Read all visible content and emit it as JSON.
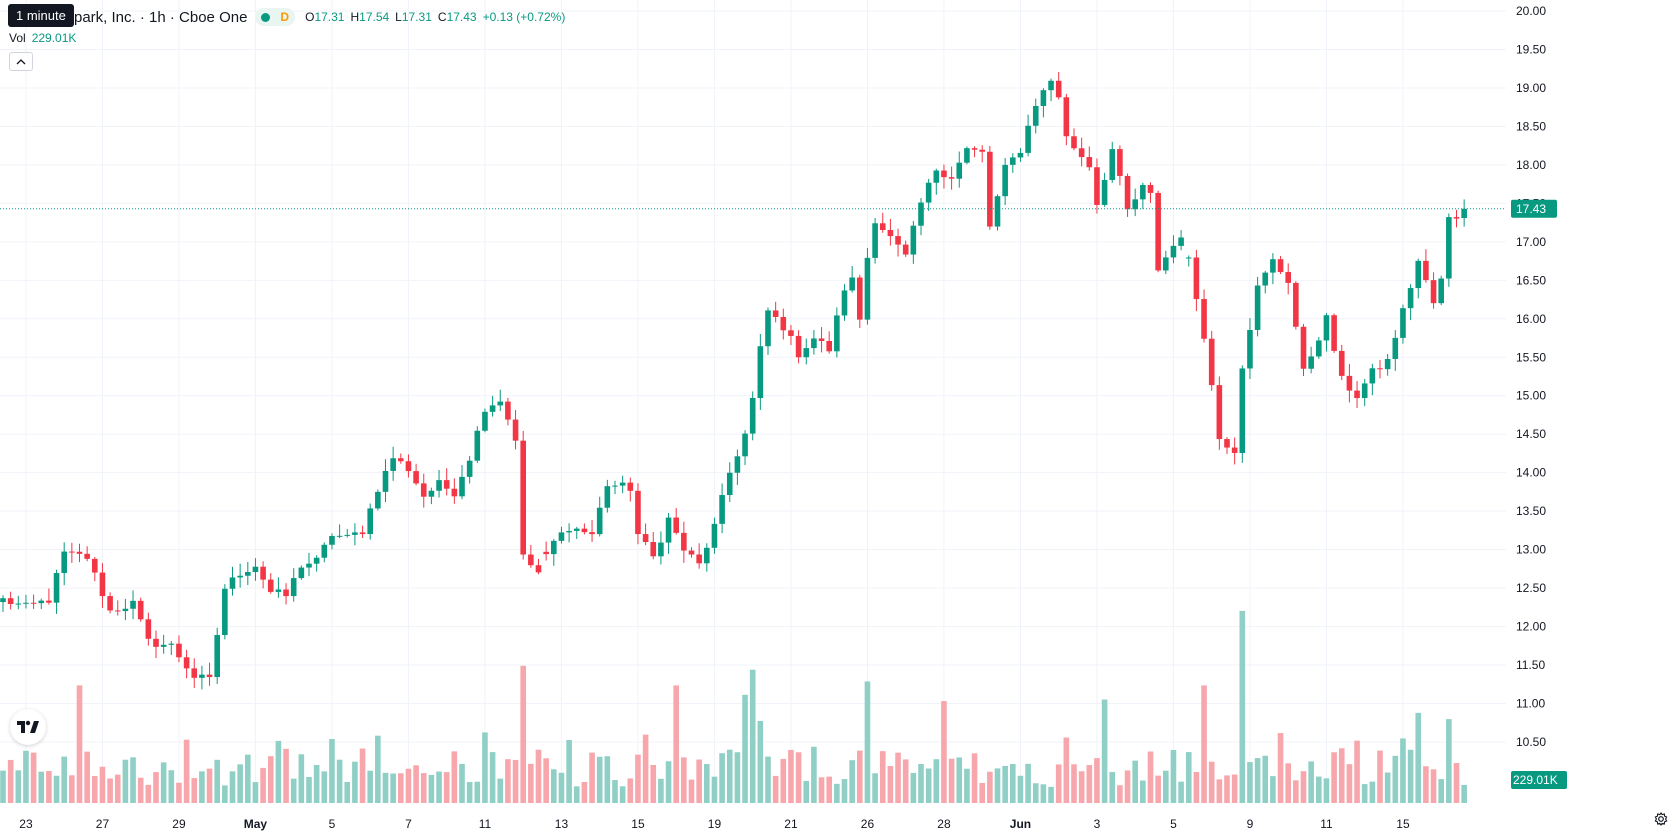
{
  "header": {
    "tooltip": "1 minute",
    "symbol_text": "park, Inc. · 1h · Cboe One",
    "d_flag": "D",
    "ohlc": [
      {
        "label": "O",
        "value": "17.31"
      },
      {
        "label": "H",
        "value": "17.54"
      },
      {
        "label": "L",
        "value": "17.31"
      },
      {
        "label": "C",
        "value": "17.43"
      }
    ],
    "change": "+0.13 (+0.72%)",
    "vol_label": "Vol",
    "vol_value": "229.01K",
    "collapse_icon": "chevron-up-icon",
    "logo_text": "TV",
    "settings_icon": "gear-icon"
  },
  "colors": {
    "up": "#089981",
    "down": "#f23645",
    "vol_up": "#8fcfc5",
    "vol_down": "#f7a6ab",
    "grid": "#f0f3fa",
    "text": "#131722"
  },
  "chart_data": {
    "type": "candlestick",
    "interval": "1h",
    "y_axis": {
      "min": 10.5,
      "max": 20.0,
      "step": 0.5,
      "ticks": [
        "20.00",
        "19.50",
        "19.00",
        "18.50",
        "18.00",
        "17.50",
        "17.00",
        "16.50",
        "16.00",
        "15.50",
        "15.00",
        "14.50",
        "14.00",
        "13.50",
        "13.00",
        "12.50",
        "12.00",
        "11.50",
        "11.00",
        "10.50"
      ]
    },
    "x_labels": [
      {
        "label": "23",
        "bar": 3,
        "bold": false
      },
      {
        "label": "27",
        "bar": 13,
        "bold": false
      },
      {
        "label": "29",
        "bar": 23,
        "bold": false
      },
      {
        "label": "May",
        "bar": 33,
        "bold": true
      },
      {
        "label": "5",
        "bar": 43,
        "bold": false
      },
      {
        "label": "7",
        "bar": 53,
        "bold": false
      },
      {
        "label": "11",
        "bar": 63,
        "bold": false
      },
      {
        "label": "13",
        "bar": 73,
        "bold": false
      },
      {
        "label": "15",
        "bar": 83,
        "bold": false
      },
      {
        "label": "19",
        "bar": 93,
        "bold": false
      },
      {
        "label": "21",
        "bar": 103,
        "bold": false
      },
      {
        "label": "26",
        "bar": 113,
        "bold": false
      },
      {
        "label": "28",
        "bar": 123,
        "bold": false
      },
      {
        "label": "Jun",
        "bar": 133,
        "bold": true
      },
      {
        "label": "3",
        "bar": 143,
        "bold": false
      },
      {
        "label": "5",
        "bar": 153,
        "bold": false
      },
      {
        "label": "9",
        "bar": 163,
        "bold": false
      },
      {
        "label": "11",
        "bar": 173,
        "bold": false
      },
      {
        "label": "15",
        "bar": 183,
        "bold": false
      }
    ],
    "last_price": 17.43,
    "last_price_label": "17.43",
    "last_volume_label": "229.01K",
    "volume_max": 250,
    "waypoints": [
      [
        0,
        12.35
      ],
      [
        3,
        12.25
      ],
      [
        6,
        12.35
      ],
      [
        8,
        12.95
      ],
      [
        11,
        12.9
      ],
      [
        14,
        12.2
      ],
      [
        17,
        12.3
      ],
      [
        19,
        11.8
      ],
      [
        22,
        11.75
      ],
      [
        25,
        11.35
      ],
      [
        27,
        11.3
      ],
      [
        29,
        12.5
      ],
      [
        31,
        12.7
      ],
      [
        33,
        12.8
      ],
      [
        35,
        12.45
      ],
      [
        37,
        12.4
      ],
      [
        39,
        12.8
      ],
      [
        41,
        12.85
      ],
      [
        43,
        13.2
      ],
      [
        45,
        13.15
      ],
      [
        47,
        13.25
      ],
      [
        49,
        13.8
      ],
      [
        51,
        14.2
      ],
      [
        53,
        14.05
      ],
      [
        55,
        13.7
      ],
      [
        57,
        13.85
      ],
      [
        59,
        13.75
      ],
      [
        61,
        14.2
      ],
      [
        63,
        14.85
      ],
      [
        65,
        14.95
      ],
      [
        67,
        14.45
      ],
      [
        68,
        12.9
      ],
      [
        70,
        12.7
      ],
      [
        72,
        13.1
      ],
      [
        74,
        13.3
      ],
      [
        77,
        13.2
      ],
      [
        79,
        13.85
      ],
      [
        82,
        13.8
      ],
      [
        83,
        13.2
      ],
      [
        85,
        12.9
      ],
      [
        87,
        13.4
      ],
      [
        89,
        13.0
      ],
      [
        91,
        12.8
      ],
      [
        93,
        13.3
      ],
      [
        95,
        14.0
      ],
      [
        97,
        14.5
      ],
      [
        98,
        14.95
      ],
      [
        99,
        15.6
      ],
      [
        100,
        16.1
      ],
      [
        102,
        15.9
      ],
      [
        104,
        15.55
      ],
      [
        106,
        15.75
      ],
      [
        108,
        15.6
      ],
      [
        110,
        16.4
      ],
      [
        111,
        16.5
      ],
      [
        112,
        16.0
      ],
      [
        113,
        16.8
      ],
      [
        114,
        17.3
      ],
      [
        116,
        17.05
      ],
      [
        118,
        16.8
      ],
      [
        120,
        17.5
      ],
      [
        122,
        17.95
      ],
      [
        124,
        17.85
      ],
      [
        126,
        18.2
      ],
      [
        128,
        18.15
      ],
      [
        129,
        17.2
      ],
      [
        131,
        17.95
      ],
      [
        133,
        18.2
      ],
      [
        135,
        18.8
      ],
      [
        137,
        19.1
      ],
      [
        138,
        18.9
      ],
      [
        139,
        18.35
      ],
      [
        142,
        18.0
      ],
      [
        143,
        17.5
      ],
      [
        145,
        18.2
      ],
      [
        147,
        17.4
      ],
      [
        149,
        17.7
      ],
      [
        150,
        17.6
      ],
      [
        151,
        16.65
      ],
      [
        154,
        17.1
      ],
      [
        155,
        16.75
      ],
      [
        157,
        15.8
      ],
      [
        159,
        14.45
      ],
      [
        161,
        14.3
      ],
      [
        162,
        15.4
      ],
      [
        164,
        16.4
      ],
      [
        166,
        16.75
      ],
      [
        168,
        16.5
      ],
      [
        170,
        15.3
      ],
      [
        173,
        16.0
      ],
      [
        175,
        15.2
      ],
      [
        177,
        15.0
      ],
      [
        179,
        15.3
      ],
      [
        181,
        15.45
      ],
      [
        183,
        16.1
      ],
      [
        185,
        16.75
      ],
      [
        187,
        16.2
      ],
      [
        188,
        16.5
      ],
      [
        189,
        17.3
      ],
      [
        190,
        17.33
      ],
      [
        191,
        17.43
      ]
    ],
    "gaps_after_bar": [
      70,
      154
    ],
    "volume_spikes": [
      {
        "bar": 10,
        "volume": 150
      },
      {
        "bar": 63,
        "volume": 90
      },
      {
        "bar": 68,
        "volume": 175
      },
      {
        "bar": 88,
        "volume": 150
      },
      {
        "bar": 97,
        "volume": 138
      },
      {
        "bar": 98,
        "volume": 170
      },
      {
        "bar": 113,
        "volume": 155
      },
      {
        "bar": 123,
        "volume": 130
      },
      {
        "bar": 144,
        "volume": 132
      },
      {
        "bar": 157,
        "volume": 150
      },
      {
        "bar": 162,
        "volume": 245
      },
      {
        "bar": 185,
        "volume": 115
      },
      {
        "bar": 189,
        "volume": 107
      }
    ]
  }
}
